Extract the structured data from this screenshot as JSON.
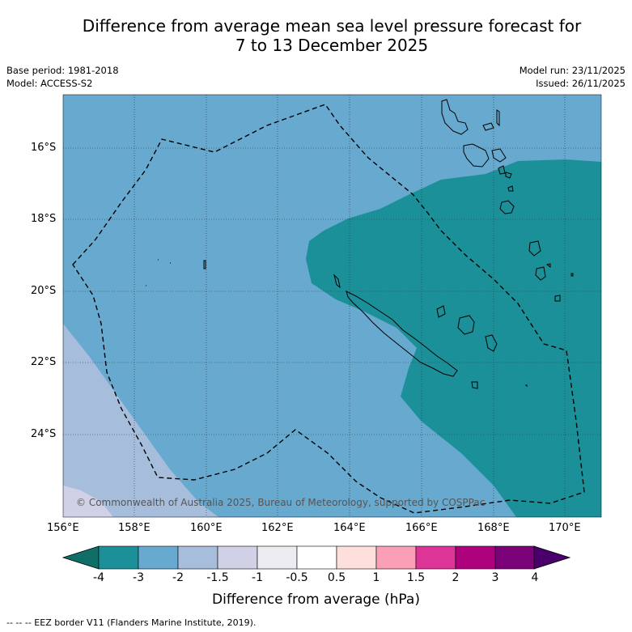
{
  "title": {
    "line1": "Difference from average mean sea level pressure forecast for",
    "line2": "7 to 13 December 2025"
  },
  "meta": {
    "base_period": "Base period: 1981-2018",
    "model": "Model: ACCESS-S2",
    "model_run": "Model run: 23/11/2025",
    "issued": "Issued: 26/11/2025"
  },
  "map": {
    "copyright": "© Commonwealth of Australia 2025, Bureau of Meteorology, supported by COSPPac",
    "lat_labels": [
      "16°S",
      "18°S",
      "20°S",
      "22°S",
      "24°S"
    ],
    "lon_labels": [
      "156°E",
      "158°E",
      "160°E",
      "162°E",
      "164°E",
      "166°E",
      "168°E",
      "170°E"
    ],
    "extent": {
      "lon_min": 156,
      "lon_max": 171,
      "lat_max": -14.5,
      "lat_min": -26.3
    }
  },
  "colorbar": {
    "title": "Difference from average (hPa)",
    "tick_labels": [
      "-4",
      "-3",
      "-2",
      "-1.5",
      "-1",
      "-0.5",
      "0.5",
      "1",
      "1.5",
      "2",
      "3",
      "4"
    ],
    "colors": {
      "below_min": "#0f6e66",
      "segments": [
        "#1c9099",
        "#67a9cf",
        "#a6bddb",
        "#d0d1e6",
        "#ececf1",
        "#ffffff",
        "#fde0dd",
        "#fa9fb5",
        "#dd3497",
        "#ae017e",
        "#7a0177"
      ],
      "above_max": "#49006a"
    }
  },
  "footer": {
    "legend": "--  --  -- EEZ border V11 (Flanders Marine Institute, 2019)."
  }
}
